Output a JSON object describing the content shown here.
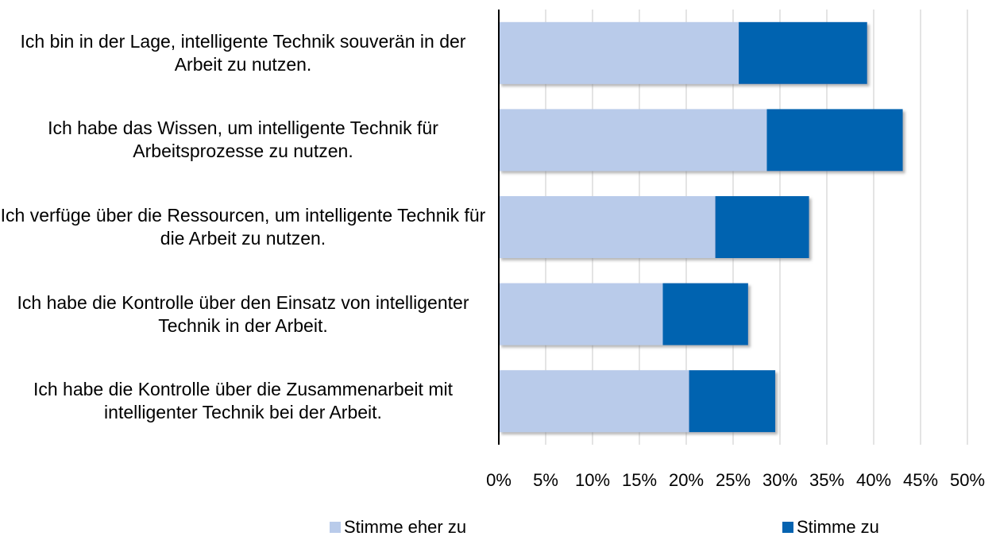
{
  "chart_data": {
    "type": "stacked-barh",
    "categories": [
      "Ich bin in der Lage, intelligente Technik souverän in der Arbeit zu nutzen.",
      "Ich habe das Wissen, um intelligente Technik für Arbeitsprozesse zu nutzen.",
      "Ich verfüge über die Ressourcen, um intelligente Technik für die Arbeit zu nutzen.",
      "Ich habe die Kontrolle über den Einsatz von intelligenter Technik in der Arbeit.",
      "Ich habe die Kontrolle über die Zusammenarbeit mit intelligenter Technik bei der Arbeit."
    ],
    "series": [
      {
        "name": "Stimme eher zu",
        "color": "#b9cbea",
        "values": [
          25.6,
          28.6,
          23.1,
          17.5,
          20.3
        ]
      },
      {
        "name": "Stimme zu",
        "color": "#0563b0",
        "values": [
          13.7,
          14.5,
          10.0,
          9.1,
          9.2
        ]
      }
    ],
    "xlim": [
      0,
      50
    ],
    "xticks": [
      {
        "value": 0,
        "label": "0%"
      },
      {
        "value": 5,
        "label": "5%"
      },
      {
        "value": 10,
        "label": "10%"
      },
      {
        "value": 15,
        "label": "15%"
      },
      {
        "value": 20,
        "label": "20%"
      },
      {
        "value": 25,
        "label": "25%"
      },
      {
        "value": 30,
        "label": "30%"
      },
      {
        "value": 35,
        "label": "35%"
      },
      {
        "value": 40,
        "label": "40%"
      },
      {
        "value": 45,
        "label": "45%"
      },
      {
        "value": 50,
        "label": "50%"
      }
    ],
    "grid": true,
    "legend": "bottom"
  }
}
